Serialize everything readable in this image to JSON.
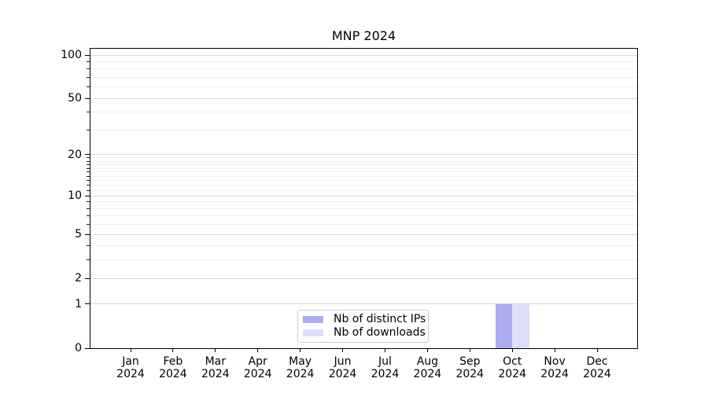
{
  "title": "MNP 2024",
  "chart_data": {
    "type": "bar",
    "title": "MNP 2024",
    "categories": [
      "Jan 2024",
      "Feb 2024",
      "Mar 2024",
      "Apr 2024",
      "May 2024",
      "Jun 2024",
      "Jul 2024",
      "Aug 2024",
      "Sep 2024",
      "Oct 2024",
      "Nov 2024",
      "Dec 2024"
    ],
    "x_tick_month": [
      "Jan",
      "Feb",
      "Mar",
      "Apr",
      "May",
      "Jun",
      "Jul",
      "Aug",
      "Sep",
      "Oct",
      "Nov",
      "Dec"
    ],
    "x_tick_year": "2024",
    "series": [
      {
        "name": "Nb of distinct IPs",
        "color": "#acacf2",
        "values": [
          0,
          0,
          0,
          0,
          0,
          0,
          0,
          0,
          0,
          1,
          0,
          0
        ]
      },
      {
        "name": "Nb of downloads",
        "color": "#dedefa",
        "values": [
          0,
          0,
          0,
          0,
          0,
          0,
          0,
          0,
          0,
          1,
          0,
          0
        ]
      }
    ],
    "xlabel": "",
    "ylabel": "",
    "yscale": "log1p",
    "ylim": [
      0,
      112
    ],
    "yticks": [
      0,
      1,
      2,
      5,
      10,
      20,
      50,
      100
    ],
    "yminorticks": [
      3,
      4,
      6,
      7,
      8,
      9,
      11,
      12,
      13,
      14,
      15,
      16,
      17,
      18,
      19,
      30,
      40,
      60,
      70,
      80,
      90
    ],
    "grid": "horizontal",
    "legend_position": "lower center"
  },
  "legend": {
    "items": [
      {
        "label": "Nb of distinct IPs",
        "color": "#acacf2"
      },
      {
        "label": "Nb of downloads",
        "color": "#dedefa"
      }
    ]
  },
  "colors": {
    "background": "#ffffff",
    "spine": "#000000",
    "major_grid": "#d9d9d9",
    "minor_grid": "#f0f0f0",
    "bar_distinct_ips": "#acacf2",
    "bar_downloads": "#dedefa",
    "legend_border": "#cccccc",
    "text": "#000000"
  }
}
